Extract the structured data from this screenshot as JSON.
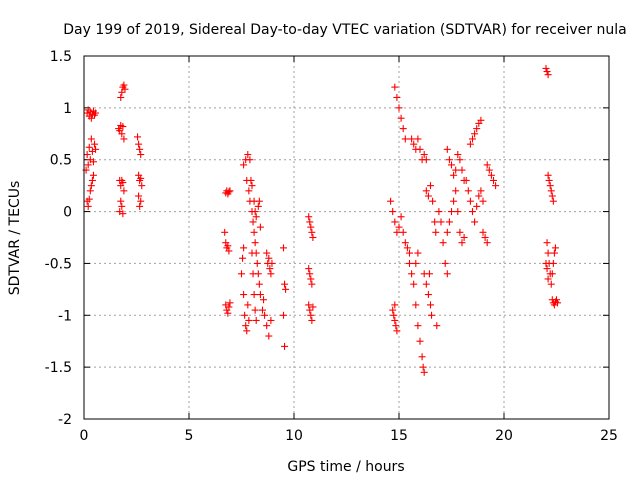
{
  "chart_data": {
    "type": "scatter",
    "title": "Day 199 of 2019, Sidereal Day-to-day VTEC variation (SDTVAR) for receiver nula",
    "xlabel": "GPS time / hours",
    "ylabel": "SDTVAR / TECUs",
    "xlim": [
      0,
      25
    ],
    "ylim": [
      -2,
      1.5
    ],
    "x_ticks": [
      0,
      5,
      10,
      15,
      20,
      25
    ],
    "y_ticks": [
      -2,
      -1.5,
      -1,
      -0.5,
      0,
      0.5,
      1,
      1.5
    ],
    "x_tick_labels": [
      "0",
      "5",
      "10",
      "15",
      "20",
      "25"
    ],
    "y_tick_labels": [
      "-2",
      "-1.5",
      "-1",
      "-0.5",
      "0",
      "0.5",
      "1",
      "1.5"
    ],
    "grid": true,
    "marker": "plus",
    "color": "#ff0000",
    "series": [
      {
        "points": [
          [
            0.15,
            0.95
          ],
          [
            0.2,
            0.98
          ],
          [
            0.25,
            0.92
          ],
          [
            0.3,
            0.96
          ],
          [
            0.35,
            0.9
          ],
          [
            0.4,
            0.94
          ],
          [
            0.45,
            0.97
          ],
          [
            0.5,
            0.93
          ],
          [
            0.55,
            0.95
          ],
          [
            0.1,
            0.4
          ],
          [
            0.15,
            0.55
          ],
          [
            0.2,
            0.45
          ],
          [
            0.25,
            0.62
          ],
          [
            0.3,
            0.5
          ],
          [
            0.35,
            0.7
          ],
          [
            0.4,
            0.58
          ],
          [
            0.45,
            0.48
          ],
          [
            0.5,
            0.65
          ],
          [
            0.55,
            0.6
          ],
          [
            0.15,
            0.1
          ],
          [
            0.2,
            0.05
          ],
          [
            0.25,
            0.12
          ],
          [
            0.3,
            0.2
          ],
          [
            0.35,
            0.25
          ],
          [
            0.4,
            0.3
          ],
          [
            0.45,
            0.35
          ],
          [
            1.75,
            1.1
          ],
          [
            1.8,
            1.15
          ],
          [
            1.85,
            1.2
          ],
          [
            1.9,
            1.22
          ],
          [
            1.95,
            1.18
          ],
          [
            1.65,
            0.8
          ],
          [
            1.7,
            0.78
          ],
          [
            1.75,
            0.83
          ],
          [
            1.8,
            0.75
          ],
          [
            1.85,
            0.82
          ],
          [
            1.9,
            0.7
          ],
          [
            1.7,
            0.3
          ],
          [
            1.75,
            0.25
          ],
          [
            1.8,
            0.3
          ],
          [
            1.85,
            0.28
          ],
          [
            1.9,
            0.2
          ],
          [
            1.7,
            0.0
          ],
          [
            1.75,
            0.1
          ],
          [
            1.8,
            0.05
          ],
          [
            1.85,
            -0.02
          ],
          [
            2.55,
            0.72
          ],
          [
            2.6,
            0.65
          ],
          [
            2.65,
            0.6
          ],
          [
            2.7,
            0.55
          ],
          [
            2.6,
            0.35
          ],
          [
            2.65,
            0.3
          ],
          [
            2.7,
            0.32
          ],
          [
            2.75,
            0.25
          ],
          [
            2.6,
            0.15
          ],
          [
            2.65,
            0.05
          ],
          [
            2.7,
            0.1
          ],
          [
            6.75,
            0.18
          ],
          [
            6.8,
            0.2
          ],
          [
            6.85,
            0.17
          ],
          [
            6.9,
            0.19
          ],
          [
            6.95,
            0.2
          ],
          [
            6.7,
            -0.2
          ],
          [
            6.75,
            -0.3
          ],
          [
            6.8,
            -0.35
          ],
          [
            6.85,
            -0.33
          ],
          [
            6.9,
            -0.38
          ],
          [
            6.75,
            -0.9
          ],
          [
            6.8,
            -0.95
          ],
          [
            6.85,
            -0.98
          ],
          [
            6.9,
            -0.92
          ],
          [
            6.95,
            -0.88
          ],
          [
            7.6,
            0.45
          ],
          [
            7.7,
            0.5
          ],
          [
            7.8,
            0.55
          ],
          [
            7.9,
            0.5
          ],
          [
            7.75,
            0.3
          ],
          [
            7.85,
            0.2
          ],
          [
            7.9,
            0.1
          ],
          [
            8.0,
            0.0
          ],
          [
            8.05,
            -0.1
          ],
          [
            8.1,
            -0.2
          ],
          [
            8.15,
            -0.3
          ],
          [
            8.2,
            -0.4
          ],
          [
            8.25,
            -0.5
          ],
          [
            8.3,
            -0.6
          ],
          [
            8.35,
            -0.7
          ],
          [
            8.4,
            -0.8
          ],
          [
            7.95,
            0.3
          ],
          [
            8.0,
            0.25
          ],
          [
            8.1,
            0.1
          ],
          [
            8.15,
            0.0
          ],
          [
            8.2,
            -0.05
          ],
          [
            8.3,
            0.05
          ],
          [
            8.35,
            0.1
          ],
          [
            8.4,
            -0.15
          ],
          [
            7.6,
            -0.8
          ],
          [
            7.65,
            -1.0
          ],
          [
            7.7,
            -1.1
          ],
          [
            7.75,
            -1.15
          ],
          [
            7.8,
            -0.9
          ],
          [
            7.85,
            -1.05
          ],
          [
            7.5,
            -0.6
          ],
          [
            7.55,
            -0.45
          ],
          [
            7.6,
            -0.35
          ],
          [
            8.0,
            -0.4
          ],
          [
            8.05,
            -0.6
          ],
          [
            8.1,
            -0.8
          ],
          [
            8.15,
            -0.95
          ],
          [
            8.2,
            -1.05
          ],
          [
            8.5,
            -0.95
          ],
          [
            8.6,
            -1.0
          ],
          [
            8.7,
            -1.1
          ],
          [
            8.8,
            -1.2
          ],
          [
            8.9,
            -1.05
          ],
          [
            8.55,
            -0.85
          ],
          [
            8.7,
            -0.4
          ],
          [
            8.75,
            -0.5
          ],
          [
            8.8,
            -0.45
          ],
          [
            8.85,
            -0.55
          ],
          [
            8.9,
            -0.6
          ],
          [
            8.95,
            -0.5
          ],
          [
            9.5,
            -0.35
          ],
          [
            9.6,
            -0.75
          ],
          [
            9.55,
            -0.7
          ],
          [
            9.5,
            -1.0
          ],
          [
            9.55,
            -1.3
          ],
          [
            10.7,
            -0.05
          ],
          [
            10.75,
            -0.1
          ],
          [
            10.8,
            -0.15
          ],
          [
            10.85,
            -0.2
          ],
          [
            10.9,
            -0.25
          ],
          [
            10.7,
            -0.55
          ],
          [
            10.75,
            -0.6
          ],
          [
            10.8,
            -0.65
          ],
          [
            10.85,
            -0.7
          ],
          [
            10.7,
            -0.9
          ],
          [
            10.75,
            -0.95
          ],
          [
            10.8,
            -1.0
          ],
          [
            10.85,
            -1.05
          ],
          [
            10.9,
            -0.92
          ],
          [
            14.7,
            -0.95
          ],
          [
            14.75,
            -1.0
          ],
          [
            14.8,
            -1.05
          ],
          [
            14.85,
            -1.1
          ],
          [
            14.9,
            -1.15
          ],
          [
            14.8,
            -0.9
          ],
          [
            14.8,
            1.2
          ],
          [
            14.9,
            1.1
          ],
          [
            15.0,
            1.0
          ],
          [
            15.1,
            0.9
          ],
          [
            15.2,
            0.8
          ],
          [
            15.3,
            0.7
          ],
          [
            14.6,
            0.1
          ],
          [
            14.7,
            0.0
          ],
          [
            14.8,
            -0.1
          ],
          [
            14.9,
            -0.2
          ],
          [
            15.0,
            -0.15
          ],
          [
            15.1,
            -0.05
          ],
          [
            15.2,
            -0.2
          ],
          [
            15.3,
            -0.3
          ],
          [
            15.4,
            -0.35
          ],
          [
            15.5,
            -0.4
          ],
          [
            15.6,
            0.7
          ],
          [
            15.7,
            0.65
          ],
          [
            15.8,
            0.6
          ],
          [
            15.9,
            0.7
          ],
          [
            16.0,
            0.6
          ],
          [
            16.1,
            0.5
          ],
          [
            16.2,
            0.55
          ],
          [
            16.3,
            0.5
          ],
          [
            15.5,
            -0.5
          ],
          [
            15.6,
            -0.6
          ],
          [
            15.7,
            -0.7
          ],
          [
            15.8,
            -0.5
          ],
          [
            15.9,
            -0.4
          ],
          [
            15.8,
            -0.9
          ],
          [
            15.9,
            -1.1
          ],
          [
            16.0,
            -1.25
          ],
          [
            16.1,
            -1.4
          ],
          [
            16.15,
            -1.5
          ],
          [
            16.2,
            -1.55
          ],
          [
            16.2,
            -0.6
          ],
          [
            16.3,
            -0.7
          ],
          [
            16.4,
            -0.8
          ],
          [
            16.5,
            -0.9
          ],
          [
            16.55,
            -1.0
          ],
          [
            16.45,
            -0.6
          ],
          [
            16.3,
            0.2
          ],
          [
            16.4,
            0.15
          ],
          [
            16.5,
            0.25
          ],
          [
            16.6,
            0.1
          ],
          [
            16.7,
            -0.1
          ],
          [
            16.75,
            -0.2
          ],
          [
            16.8,
            -1.1
          ],
          [
            16.9,
            0.0
          ],
          [
            17.0,
            -0.1
          ],
          [
            17.1,
            -0.3
          ],
          [
            17.2,
            -0.5
          ],
          [
            17.3,
            -0.6
          ],
          [
            17.3,
            0.6
          ],
          [
            17.4,
            0.5
          ],
          [
            17.5,
            0.45
          ],
          [
            17.6,
            0.35
          ],
          [
            17.7,
            0.4
          ],
          [
            17.8,
            0.55
          ],
          [
            17.9,
            0.5
          ],
          [
            18.0,
            0.4
          ],
          [
            18.1,
            0.3
          ],
          [
            17.3,
            -0.2
          ],
          [
            17.4,
            -0.1
          ],
          [
            17.5,
            0.0
          ],
          [
            17.6,
            0.1
          ],
          [
            17.7,
            0.2
          ],
          [
            17.8,
            0.0
          ],
          [
            17.9,
            -0.2
          ],
          [
            18.0,
            -0.3
          ],
          [
            18.1,
            -0.25
          ],
          [
            18.2,
            0.3
          ],
          [
            18.3,
            0.2
          ],
          [
            18.4,
            0.1
          ],
          [
            18.5,
            0.0
          ],
          [
            18.6,
            -0.1
          ],
          [
            18.7,
            0.05
          ],
          [
            18.8,
            0.15
          ],
          [
            18.9,
            0.2
          ],
          [
            19.0,
            0.1
          ],
          [
            18.4,
            0.65
          ],
          [
            18.5,
            0.7
          ],
          [
            18.6,
            0.75
          ],
          [
            18.7,
            0.8
          ],
          [
            18.8,
            0.85
          ],
          [
            18.9,
            0.88
          ],
          [
            19.0,
            -0.2
          ],
          [
            19.1,
            -0.25
          ],
          [
            19.2,
            -0.3
          ],
          [
            19.2,
            0.45
          ],
          [
            19.3,
            0.4
          ],
          [
            19.4,
            0.35
          ],
          [
            19.5,
            0.3
          ],
          [
            19.6,
            0.25
          ],
          [
            22.0,
            1.38
          ],
          [
            22.05,
            1.35
          ],
          [
            22.1,
            1.32
          ],
          [
            22.1,
            0.35
          ],
          [
            22.15,
            0.3
          ],
          [
            22.2,
            0.25
          ],
          [
            22.25,
            0.2
          ],
          [
            22.3,
            0.15
          ],
          [
            22.35,
            0.1
          ],
          [
            22.05,
            -0.3
          ],
          [
            22.1,
            -0.4
          ],
          [
            22.15,
            -0.5
          ],
          [
            22.2,
            -0.6
          ],
          [
            22.25,
            -0.7
          ],
          [
            22.3,
            -0.6
          ],
          [
            22.35,
            -0.5
          ],
          [
            22.4,
            -0.4
          ],
          [
            22.45,
            -0.35
          ],
          [
            22.0,
            -0.5
          ],
          [
            22.05,
            -0.55
          ],
          [
            22.1,
            -0.65
          ],
          [
            22.3,
            -0.85
          ],
          [
            22.35,
            -0.88
          ],
          [
            22.4,
            -0.9
          ],
          [
            22.45,
            -0.87
          ],
          [
            22.5,
            -0.85
          ],
          [
            22.55,
            -0.88
          ]
        ]
      }
    ]
  }
}
